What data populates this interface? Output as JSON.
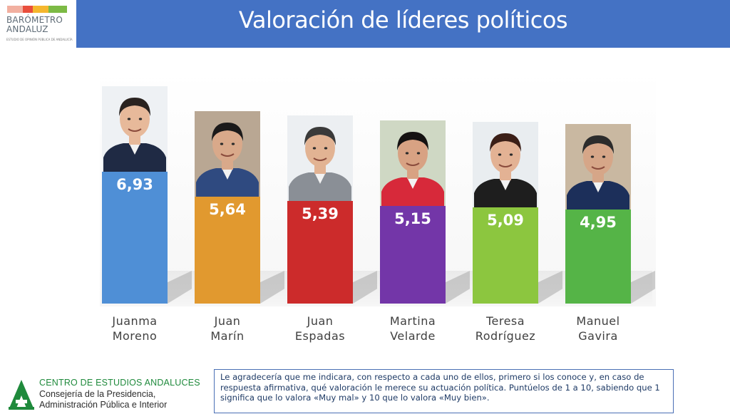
{
  "header": {
    "logo_line1": "BARÓMETRO",
    "logo_line2": "ANDALUZ",
    "logo_subtitle": "ESTUDIO DE OPINIÓN PÚBLICA DE ANDALUCÍA",
    "title": "Valoración de líderes políticos",
    "brand_color": "#4472c4"
  },
  "chart_data": {
    "type": "bar",
    "title": "Valoración de líderes políticos",
    "categories": [
      "Juanma Moreno",
      "Juan Marín",
      "Juan Espadas",
      "Martina Velarde",
      "Teresa Rodríguez",
      "Manuel Gavira"
    ],
    "category_lines": [
      [
        "Juanma",
        "Moreno"
      ],
      [
        "Juan",
        "Marín"
      ],
      [
        "Juan",
        "Espadas"
      ],
      [
        "Martina",
        "Velarde"
      ],
      [
        "Teresa",
        "Rodríguez"
      ],
      [
        "Manuel",
        "Gavira"
      ]
    ],
    "values": [
      6.93,
      5.64,
      5.39,
      5.15,
      5.09,
      4.95
    ],
    "value_labels": [
      "6,93",
      "5,64",
      "5,39",
      "5,15",
      "5,09",
      "4,95"
    ],
    "colors": [
      "#4f8fd6",
      "#e1992f",
      "#cc2b2b",
      "#7336a8",
      "#8cc63f",
      "#55b447"
    ],
    "ylim": [
      0,
      10
    ],
    "grid": false,
    "legend": "none",
    "xlabel": "",
    "ylabel": ""
  },
  "footer": {
    "org_line1": "CENTRO DE ESTUDIOS ANDALUCES",
    "org_line2": "Consejería de la Presidencia,",
    "org_line3": "Administración Pública e Interior",
    "question": "Le agradecería que me indicara, con respecto a cada uno de ellos, primero si los conoce y, en caso de respuesta afirmativa, qué valoración le merece su actuación política. Puntúelos de 1 a 10, sabiendo que 1 significa que lo valora «Muy mal» y 10 que lo valora «Muy bien»."
  }
}
